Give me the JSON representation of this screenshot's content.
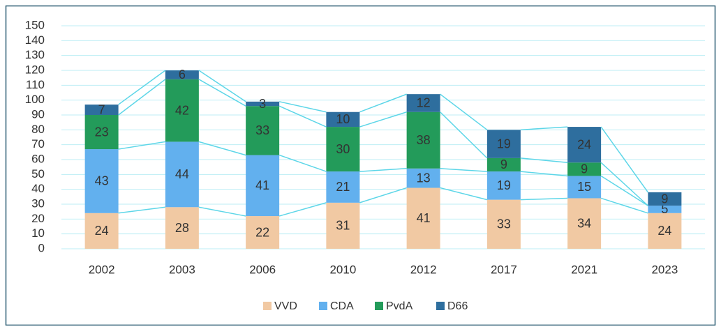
{
  "chart_data": {
    "type": "stacked_bar",
    "categories": [
      "2002",
      "2003",
      "2006",
      "2010",
      "2012",
      "2017",
      "2021",
      "2023"
    ],
    "series": [
      {
        "name": "VVD",
        "color": "#f1c9a3",
        "values": [
          24,
          28,
          22,
          31,
          41,
          33,
          34,
          24
        ]
      },
      {
        "name": "CDA",
        "color": "#62b0ee",
        "values": [
          43,
          44,
          41,
          21,
          13,
          19,
          15,
          5
        ]
      },
      {
        "name": "PvdA",
        "color": "#239b5a",
        "values": [
          23,
          42,
          33,
          30,
          38,
          9,
          9,
          0
        ]
      },
      {
        "name": "D66",
        "color": "#2e6e9e",
        "values": [
          7,
          6,
          3,
          10,
          12,
          19,
          24,
          9
        ]
      }
    ],
    "ylim": [
      0,
      150
    ],
    "yticks": [
      0,
      10,
      20,
      30,
      40,
      50,
      60,
      70,
      80,
      90,
      100,
      110,
      120,
      130,
      140,
      150
    ],
    "grid": true,
    "grid_color": "#bdeef5",
    "series_line_color": "#5dd6e8",
    "legend": "bottom"
  }
}
